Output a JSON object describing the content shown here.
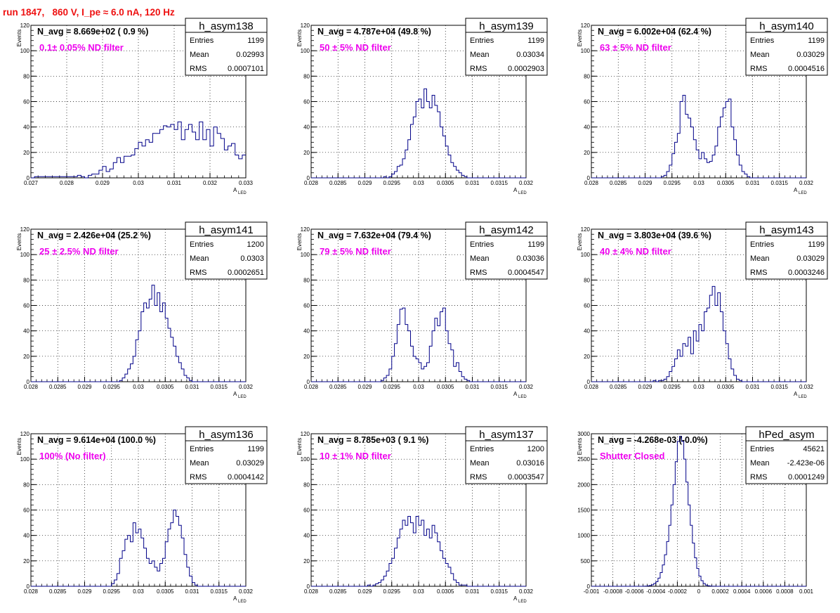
{
  "page_title": "run 1847,   860 V, I_pe ≈ 6.0 nA, 120 Hz",
  "colors": {
    "title": "#ee1111",
    "annotation": "#ee00ee",
    "line": "#000088",
    "grid": "#000000"
  },
  "chart_data": [
    {
      "type": "bar",
      "name": "h_asym138",
      "n_avg": "N_avg = 8.669e+02 ( 0.9 %)",
      "filter": "0.1± 0.05% ND filter",
      "stats": [
        {
          "label": "Entries",
          "value": "1199"
        },
        {
          "label": "Mean",
          "value": "0.02993"
        },
        {
          "label": "RMS",
          "value": "0.0007101"
        }
      ],
      "xlabel": "A",
      "xlabel_sub": "LED",
      "ylabel": "Events",
      "xlim": [
        0.027,
        0.033
      ],
      "ylim": [
        0,
        120
      ],
      "xticks": [
        "0.027",
        "0.028",
        "0.029",
        "0.03",
        "0.031",
        "0.032",
        "0.033"
      ],
      "yticks": [
        "0",
        "20",
        "40",
        "60",
        "80",
        "100",
        "120"
      ],
      "bin_start": 0.027,
      "bin_width": 0.0001,
      "values": [
        0,
        1,
        1,
        1,
        1,
        1,
        1,
        1,
        1,
        1,
        1,
        1,
        1,
        2,
        1,
        0,
        2,
        3,
        3,
        6,
        9,
        5,
        7,
        12,
        16,
        12,
        17,
        17,
        18,
        23,
        28,
        25,
        30,
        28,
        35,
        35,
        38,
        41,
        40,
        42,
        38,
        44,
        30,
        38,
        42,
        36,
        30,
        44,
        30,
        38,
        25,
        40,
        35,
        31,
        22,
        25,
        27,
        18,
        15,
        18,
        13,
        12,
        8,
        10,
        6,
        4,
        4,
        5,
        4,
        3,
        3,
        3,
        2,
        2,
        2,
        1,
        1,
        1,
        1,
        1,
        1,
        0,
        0,
        1,
        0,
        0,
        0,
        0,
        0,
        0,
        0,
        0,
        0,
        0,
        0,
        0,
        0,
        0,
        0,
        0,
        0
      ]
    },
    {
      "type": "bar",
      "name": "h_asym139",
      "n_avg": "N_avg = 4.787e+04 (49.8 %)",
      "filter": "50 ± 5% ND filter",
      "stats": [
        {
          "label": "Entries",
          "value": "1199"
        },
        {
          "label": "Mean",
          "value": "0.03034"
        },
        {
          "label": "RMS",
          "value": "0.0002903"
        }
      ],
      "xlabel": "A",
      "xlabel_sub": "LED",
      "ylabel": "Events",
      "xlim": [
        0.028,
        0.032
      ],
      "ylim": [
        0,
        120
      ],
      "xticks": [
        "0.028",
        "0.0285",
        "0.029",
        "0.0295",
        "0.03",
        "0.0305",
        "0.031",
        "0.0315",
        "0.032"
      ],
      "yticks": [
        "0",
        "20",
        "40",
        "60",
        "80",
        "100",
        "120"
      ],
      "bin_start": 0.028,
      "bin_width": 5e-05,
      "values": [
        0,
        0,
        0,
        0,
        0,
        0,
        0,
        0,
        0,
        0,
        0,
        0,
        0,
        0,
        0,
        0,
        0,
        0,
        0,
        0,
        0,
        0,
        0,
        0,
        0,
        0,
        0,
        1,
        0,
        1,
        3,
        5,
        9,
        10,
        15,
        22,
        30,
        42,
        48,
        60,
        62,
        55,
        70,
        60,
        55,
        65,
        57,
        52,
        40,
        33,
        25,
        18,
        12,
        9,
        6,
        4,
        2,
        1,
        0,
        0,
        0,
        0,
        0,
        0,
        0,
        0,
        0,
        0,
        0,
        0,
        0,
        0,
        0,
        0,
        0,
        0,
        0,
        0,
        0,
        0,
        0
      ]
    },
    {
      "type": "bar",
      "name": "h_asym140",
      "n_avg": "N_avg = 6.002e+04 (62.4 %)",
      "filter": "63 ± 5% ND filter",
      "stats": [
        {
          "label": "Entries",
          "value": "1199"
        },
        {
          "label": "Mean",
          "value": "0.03029"
        },
        {
          "label": "RMS",
          "value": "0.0004516"
        }
      ],
      "xlabel": "A",
      "xlabel_sub": "LED",
      "ylabel": "Events",
      "xlim": [
        0.028,
        0.032
      ],
      "ylim": [
        0,
        120
      ],
      "xticks": [
        "0.028",
        "0.0285",
        "0.029",
        "0.0295",
        "0.03",
        "0.0305",
        "0.031",
        "0.0315",
        "0.032"
      ],
      "yticks": [
        "0",
        "20",
        "40",
        "60",
        "80",
        "100",
        "120"
      ],
      "bin_start": 0.028,
      "bin_width": 5e-05,
      "values": [
        0,
        0,
        0,
        0,
        0,
        0,
        0,
        0,
        0,
        0,
        0,
        0,
        0,
        0,
        0,
        0,
        0,
        0,
        0,
        0,
        0,
        0,
        0,
        0,
        0,
        0,
        1,
        2,
        5,
        10,
        19,
        28,
        35,
        60,
        65,
        50,
        47,
        40,
        30,
        22,
        15,
        20,
        15,
        12,
        13,
        18,
        25,
        40,
        48,
        55,
        60,
        62,
        40,
        30,
        18,
        10,
        5,
        3,
        1,
        0,
        0,
        0,
        0,
        0,
        0,
        0,
        0,
        0,
        0,
        0,
        0,
        0,
        0,
        0,
        0,
        0,
        0,
        0,
        0,
        0,
        0
      ]
    },
    {
      "type": "bar",
      "name": "h_asym141",
      "n_avg": "N_avg = 2.426e+04 (25.2 %)",
      "filter": "25 ± 2.5% ND filter",
      "stats": [
        {
          "label": "Entries",
          "value": "1200"
        },
        {
          "label": "Mean",
          "value": "0.0303"
        },
        {
          "label": "RMS",
          "value": "0.0002651"
        }
      ],
      "xlabel": "A",
      "xlabel_sub": "LED",
      "ylabel": "Events",
      "xlim": [
        0.028,
        0.032
      ],
      "ylim": [
        0,
        120
      ],
      "xticks": [
        "0.028",
        "0.0285",
        "0.029",
        "0.0295",
        "0.03",
        "0.0305",
        "0.031",
        "0.0315",
        "0.032"
      ],
      "yticks": [
        "0",
        "20",
        "40",
        "60",
        "80",
        "100",
        "120"
      ],
      "bin_start": 0.028,
      "bin_width": 5e-05,
      "values": [
        0,
        0,
        0,
        0,
        0,
        0,
        0,
        0,
        0,
        0,
        0,
        0,
        0,
        0,
        0,
        0,
        0,
        0,
        0,
        0,
        0,
        0,
        0,
        0,
        0,
        0,
        0,
        0,
        0,
        0,
        0,
        0,
        0,
        1,
        3,
        6,
        10,
        14,
        20,
        33,
        40,
        55,
        62,
        58,
        65,
        76,
        60,
        70,
        55,
        62,
        50,
        42,
        35,
        28,
        20,
        15,
        10,
        5,
        3,
        1,
        0,
        0,
        0,
        0,
        0,
        0,
        0,
        0,
        0,
        0,
        0,
        0,
        0,
        0,
        0,
        0,
        0,
        0,
        0,
        0,
        0
      ]
    },
    {
      "type": "bar",
      "name": "h_asym142",
      "n_avg": "N_avg = 7.632e+04 (79.4 %)",
      "filter": "79 ± 5% ND filter",
      "stats": [
        {
          "label": "Entries",
          "value": "1199"
        },
        {
          "label": "Mean",
          "value": "0.03036"
        },
        {
          "label": "RMS",
          "value": "0.0004547"
        }
      ],
      "xlabel": "A",
      "xlabel_sub": "LED",
      "ylabel": "Events",
      "xlim": [
        0.028,
        0.032
      ],
      "ylim": [
        0,
        120
      ],
      "xticks": [
        "0.028",
        "0.0285",
        "0.029",
        "0.0295",
        "0.03",
        "0.0305",
        "0.031",
        "0.0315",
        "0.032"
      ],
      "yticks": [
        "0",
        "20",
        "40",
        "60",
        "80",
        "100",
        "120"
      ],
      "bin_start": 0.028,
      "bin_width": 5e-05,
      "values": [
        0,
        0,
        0,
        0,
        0,
        0,
        0,
        0,
        0,
        0,
        0,
        0,
        0,
        0,
        0,
        0,
        0,
        0,
        0,
        0,
        0,
        0,
        0,
        0,
        0,
        0,
        1,
        3,
        5,
        10,
        20,
        30,
        45,
        57,
        58,
        45,
        40,
        28,
        20,
        18,
        15,
        10,
        12,
        15,
        28,
        40,
        50,
        44,
        55,
        58,
        40,
        30,
        25,
        12,
        15,
        8,
        4,
        2,
        1,
        0,
        0,
        0,
        0,
        0,
        0,
        0,
        0,
        0,
        0,
        0,
        0,
        0,
        0,
        0,
        0,
        0,
        0,
        0,
        0,
        0,
        0
      ]
    },
    {
      "type": "bar",
      "name": "h_asym143",
      "n_avg": "N_avg = 3.803e+04 (39.6 %)",
      "filter": "40 ± 4% ND filter",
      "stats": [
        {
          "label": "Entries",
          "value": "1199"
        },
        {
          "label": "Mean",
          "value": "0.03029"
        },
        {
          "label": "RMS",
          "value": "0.0003246"
        }
      ],
      "xlabel": "A",
      "xlabel_sub": "LED",
      "ylabel": "Events",
      "xlim": [
        0.028,
        0.032
      ],
      "ylim": [
        0,
        120
      ],
      "xticks": [
        "0.028",
        "0.0285",
        "0.029",
        "0.0295",
        "0.03",
        "0.0305",
        "0.031",
        "0.0315",
        "0.032"
      ],
      "yticks": [
        "0",
        "20",
        "40",
        "60",
        "80",
        "100",
        "120"
      ],
      "bin_start": 0.028,
      "bin_width": 5e-05,
      "values": [
        0,
        0,
        0,
        0,
        0,
        0,
        0,
        0,
        0,
        0,
        0,
        0,
        0,
        0,
        0,
        0,
        0,
        0,
        0,
        0,
        0,
        0,
        0,
        1,
        0,
        1,
        1,
        2,
        4,
        8,
        12,
        18,
        25,
        20,
        30,
        28,
        35,
        22,
        40,
        32,
        45,
        40,
        55,
        58,
        68,
        75,
        60,
        70,
        55,
        40,
        30,
        18,
        10,
        5,
        2,
        1,
        0,
        0,
        0,
        0,
        0,
        0,
        0,
        0,
        0,
        0,
        0,
        0,
        0,
        0,
        0,
        0,
        0,
        0,
        0,
        0,
        0,
        0,
        0,
        0,
        0
      ]
    },
    {
      "type": "bar",
      "name": "h_asym136",
      "n_avg": "N_avg = 9.614e+04 (100.0 %)",
      "filter": "100% (No filter)",
      "stats": [
        {
          "label": "Entries",
          "value": "1199"
        },
        {
          "label": "Mean",
          "value": "0.03029"
        },
        {
          "label": "RMS",
          "value": "0.0004142"
        }
      ],
      "xlabel": "A",
      "xlabel_sub": "LED",
      "ylabel": "Events",
      "xlim": [
        0.028,
        0.032
      ],
      "ylim": [
        0,
        120
      ],
      "xticks": [
        "0.028",
        "0.0285",
        "0.029",
        "0.0295",
        "0.03",
        "0.0305",
        "0.031",
        "0.0315",
        "0.032"
      ],
      "yticks": [
        "0",
        "20",
        "40",
        "60",
        "80",
        "100",
        "120"
      ],
      "bin_start": 0.028,
      "bin_width": 5e-05,
      "values": [
        0,
        0,
        0,
        0,
        0,
        0,
        0,
        0,
        0,
        0,
        0,
        0,
        0,
        0,
        0,
        0,
        0,
        0,
        0,
        0,
        0,
        0,
        0,
        0,
        0,
        0,
        0,
        0,
        0,
        0,
        2,
        5,
        10,
        22,
        28,
        37,
        40,
        35,
        50,
        42,
        45,
        38,
        30,
        22,
        18,
        20,
        15,
        12,
        18,
        22,
        35,
        45,
        50,
        60,
        55,
        48,
        38,
        25,
        15,
        8,
        3,
        1,
        0,
        0,
        0,
        0,
        0,
        0,
        0,
        0,
        0,
        0,
        0,
        0,
        0,
        0,
        0,
        0,
        0,
        0,
        0
      ]
    },
    {
      "type": "bar",
      "name": "h_asym137",
      "n_avg": "N_avg = 8.785e+03 ( 9.1 %)",
      "filter": "10 ± 1% ND filter",
      "stats": [
        {
          "label": "Entries",
          "value": "1200"
        },
        {
          "label": "Mean",
          "value": "0.03016"
        },
        {
          "label": "RMS",
          "value": "0.0003547"
        }
      ],
      "xlabel": "A",
      "xlabel_sub": "LED",
      "ylabel": "Events",
      "xlim": [
        0.028,
        0.032
      ],
      "ylim": [
        0,
        120
      ],
      "xticks": [
        "0.028",
        "0.0285",
        "0.029",
        "0.0295",
        "0.03",
        "0.0305",
        "0.031",
        "0.0315",
        "0.032"
      ],
      "yticks": [
        "0",
        "20",
        "40",
        "60",
        "80",
        "100",
        "120"
      ],
      "bin_start": 0.028,
      "bin_width": 5e-05,
      "values": [
        0,
        0,
        0,
        0,
        0,
        0,
        0,
        0,
        0,
        0,
        0,
        0,
        0,
        0,
        0,
        0,
        0,
        0,
        0,
        0,
        0,
        1,
        0,
        1,
        2,
        3,
        5,
        8,
        12,
        18,
        22,
        30,
        38,
        45,
        52,
        48,
        55,
        50,
        42,
        55,
        48,
        52,
        40,
        45,
        38,
        48,
        42,
        35,
        28,
        22,
        18,
        15,
        10,
        5,
        3,
        1,
        1,
        1,
        0,
        0,
        0,
        0,
        0,
        0,
        0,
        0,
        0,
        0,
        0,
        0,
        0,
        0,
        0,
        0,
        0,
        0,
        0,
        0,
        0,
        0,
        0
      ]
    },
    {
      "type": "bar",
      "name": "hPed_asym",
      "n_avg": "N_avg = -4.268e-03 (-0.0%)",
      "filter": "Shutter Closed",
      "stats": [
        {
          "label": "Entries",
          "value": "45621"
        },
        {
          "label": "Mean",
          "value": "-2.423e-06"
        },
        {
          "label": "RMS",
          "value": "0.0001249"
        }
      ],
      "xlabel": "",
      "xlabel_sub": "",
      "ylabel": "Events",
      "xlim": [
        -0.001,
        0.001
      ],
      "ylim": [
        0,
        3000
      ],
      "xticks": [
        "-0.001",
        "-0.0008",
        "-0.0006",
        "-0.0004",
        "-0.0002",
        "0",
        "0.0002",
        "0.0004",
        "0.0006",
        "0.0008",
        "0.001"
      ],
      "yticks": [
        "0",
        "500",
        "1000",
        "1500",
        "2000",
        "2500",
        "3000"
      ],
      "bin_start": -0.001,
      "bin_width": 2e-05,
      "values": [
        0,
        0,
        0,
        0,
        0,
        0,
        0,
        0,
        0,
        0,
        0,
        0,
        0,
        0,
        0,
        0,
        0,
        0,
        0,
        0,
        0,
        0,
        0,
        0,
        2,
        4,
        8,
        15,
        30,
        55,
        90,
        160,
        270,
        420,
        620,
        880,
        1200,
        1600,
        2000,
        2450,
        2850,
        2950,
        2850,
        2500,
        2050,
        1600,
        1200,
        850,
        560,
        350,
        200,
        110,
        55,
        25,
        10,
        5,
        2,
        1,
        0,
        0,
        0,
        0,
        0,
        0,
        0,
        0,
        0,
        0,
        0,
        0,
        0,
        0,
        0,
        0,
        0,
        0,
        0,
        0,
        0,
        0,
        0,
        0,
        0,
        0,
        0,
        0,
        0,
        0,
        0,
        0,
        0,
        0,
        0,
        0,
        0,
        0,
        0,
        0,
        0,
        0
      ]
    }
  ]
}
